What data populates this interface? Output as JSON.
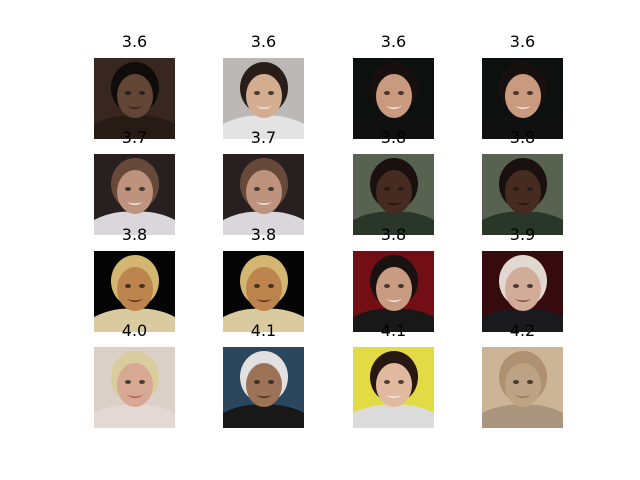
{
  "grid": {
    "rows": 4,
    "cols": 4,
    "cells": [
      {
        "title": "3.6",
        "bg": "#3b2a22",
        "skin": "#6a4a3a",
        "hair": "#120d0b",
        "cloth": "#2a1d18",
        "mouth": "#3a1c16"
      },
      {
        "title": "3.6",
        "bg": "#c9c4c4",
        "skin": "#e2b89a",
        "hair": "#2b1f1a",
        "cloth": "#f2f2f2",
        "mouth": "#ffffff"
      },
      {
        "title": "3.6",
        "bg": "#0d120f",
        "skin": "#d7a487",
        "hair": "#1a120f",
        "cloth": "#111111",
        "mouth": "#ffffff"
      },
      {
        "title": "3.6",
        "bg": "#0d120f",
        "skin": "#d7a487",
        "hair": "#1a120f",
        "cloth": "#111111",
        "mouth": "#ffffff"
      },
      {
        "title": "3.7",
        "bg": "#2a2220",
        "skin": "#c99d86",
        "hair": "#6e4e3e",
        "cloth": "#e9e4ea",
        "mouth": "#ffffff"
      },
      {
        "title": "3.7",
        "bg": "#2a2220",
        "skin": "#c99d86",
        "hair": "#6e4e3e",
        "cloth": "#e9e4ea",
        "mouth": "#ffffff"
      },
      {
        "title": "3.8",
        "bg": "#5d6a55",
        "skin": "#4b2e22",
        "hair": "#1b1210",
        "cloth": "#2c3a2c",
        "mouth": "#2a0d0b"
      },
      {
        "title": "3.8",
        "bg": "#5d6a55",
        "skin": "#4b2e22",
        "hair": "#1b1210",
        "cloth": "#2c3a2c",
        "mouth": "#2a0d0b"
      },
      {
        "title": "3.8",
        "bg": "#050505",
        "skin": "#c98d52",
        "hair": "#e1c27a",
        "cloth": "#e7d7a9",
        "mouth": "#5a2a18"
      },
      {
        "title": "3.8",
        "bg": "#050505",
        "skin": "#c98d52",
        "hair": "#e1c27a",
        "cloth": "#e7d7a9",
        "mouth": "#5a2a18"
      },
      {
        "title": "3.8",
        "bg": "#7b1016",
        "skin": "#d6a58a",
        "hair": "#1b1412",
        "cloth": "#1a1a1a",
        "mouth": "#ffffff"
      },
      {
        "title": "3.9",
        "bg": "#3a0c0e",
        "skin": "#e0b7a2",
        "hair": "#f0e6e0",
        "cloth": "#1c1c20",
        "mouth": "#7a4a40"
      },
      {
        "title": "4.0",
        "bg": "#e9ddd4",
        "skin": "#e6b49c",
        "hair": "#e9d9a8",
        "cloth": "#f2e6e2",
        "mouth": "#b85a5a"
      },
      {
        "title": "4.1",
        "bg": "#2e4c63",
        "skin": "#a77b5e",
        "hair": "#f0f0f0",
        "cloth": "#1a1a1a",
        "mouth": "#4a2a20"
      },
      {
        "title": "4.1",
        "bg": "#f1e94a",
        "skin": "#f0c5a9",
        "hair": "#2a1a14",
        "cloth": "#e9e9e9",
        "mouth": "#ffffff"
      },
      {
        "title": "4.2",
        "bg": "#d8c1a0",
        "skin": "#c9ad8d",
        "hair": "#b89b78",
        "cloth": "#b59f86",
        "mouth": "#9a7a62"
      }
    ]
  }
}
